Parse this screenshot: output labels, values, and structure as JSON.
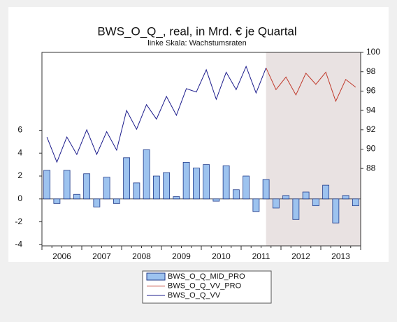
{
  "chart_data": {
    "type": "bar-line",
    "title": "BWS_O_Q_, real, in Mrd. € je Quartal",
    "subtitle": "linke Skala: Wachstumsraten",
    "categories": [
      "2006",
      null,
      null,
      null,
      "2007",
      null,
      null,
      null,
      "2008",
      null,
      null,
      null,
      "2009",
      null,
      null,
      null,
      "2010",
      null,
      null,
      null,
      "2011",
      null,
      null,
      null,
      "2012",
      null,
      null,
      null,
      "2013",
      null,
      null,
      null
    ],
    "ylim": [
      -4.1,
      12.8
    ],
    "yticks": [
      -4,
      -2,
      0,
      2,
      4,
      6
    ],
    "y2lim": [
      80,
      100
    ],
    "y2ticks": [
      88,
      90,
      92,
      94,
      96,
      98,
      100
    ],
    "series": [
      {
        "name": "BWS_O_Q_MID_PRO",
        "type": "bar",
        "color": "#9dc3ef",
        "values": [
          2.5,
          -0.4,
          2.5,
          0.4,
          2.2,
          -0.7,
          1.9,
          -0.4,
          3.6,
          1.4,
          4.3,
          2.0,
          2.3,
          0.2,
          3.2,
          2.7,
          3.0,
          -0.2,
          2.9,
          0.8,
          2.0,
          -1.1,
          1.7,
          -0.8,
          0.3,
          -1.8,
          0.6,
          -0.6,
          1.2,
          -2.1,
          0.3,
          -0.6
        ]
      },
      {
        "name": "BWS_O_Q_VV_PRO",
        "type": "line",
        "axis": "y2",
        "color": "#c0392b",
        "values": [
          null,
          null,
          null,
          null,
          null,
          null,
          null,
          null,
          null,
          null,
          null,
          null,
          null,
          null,
          null,
          null,
          null,
          null,
          null,
          null,
          null,
          null,
          98.4,
          96.15,
          97.45,
          95.6,
          97.85,
          96.7,
          97.95,
          94.95,
          97.2,
          96.4
        ]
      },
      {
        "name": "BWS_O_Q_VV",
        "type": "line",
        "axis": "y2",
        "color": "#1c1c8c",
        "values": [
          91.25,
          88.65,
          91.25,
          89.45,
          92.0,
          89.45,
          91.8,
          89.9,
          94.0,
          92.05,
          94.6,
          93.1,
          95.45,
          93.5,
          96.25,
          95.9,
          98.2,
          95.15,
          97.95,
          96.15,
          98.55,
          95.8,
          98.4,
          null,
          null,
          null,
          null,
          null,
          null,
          null,
          null,
          null
        ]
      }
    ]
  }
}
